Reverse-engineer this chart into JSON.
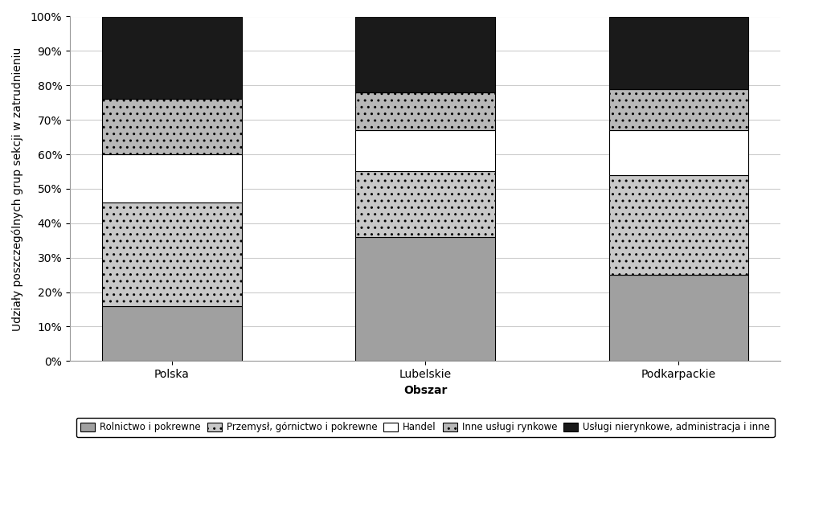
{
  "categories": [
    "Polska",
    "Lubelskie",
    "Podkarpackie"
  ],
  "series": [
    {
      "name": "Rolnictwo i pokrewne",
      "values": [
        16,
        36,
        25
      ],
      "color": "#a0a0a0",
      "hatch": ""
    },
    {
      "name": "Przemysł, górnictwo i pokrewne",
      "values": [
        30,
        19,
        29
      ],
      "color": "#c8c8c8",
      "hatch": ".."
    },
    {
      "name": "Handel",
      "values": [
        14,
        12,
        13
      ],
      "color": "#ffffff",
      "hatch": ""
    },
    {
      "name": "Inne usługi rynkowe",
      "values": [
        16,
        11,
        12
      ],
      "color": "#c8c8c8",
      "hatch": ".."
    },
    {
      "name": "Usługi nierynkowe, administracja i inne",
      "values": [
        24,
        22,
        21
      ],
      "color": "#1a1a1a",
      "hatch": ""
    }
  ],
  "xlabel": "Obszar",
  "ylabel": "Udziały poszczególnych grup sekcji w zatrudnieniu",
  "ylim": [
    0,
    100
  ],
  "yticks": [
    0,
    10,
    20,
    30,
    40,
    50,
    60,
    70,
    80,
    90,
    100
  ],
  "ytick_labels": [
    "0%",
    "10%",
    "20%",
    "30%",
    "40%",
    "50%",
    "60%",
    "70%",
    "80%",
    "90%",
    "100%"
  ],
  "bar_width": 0.55,
  "background_color": "#ffffff",
  "grid_color": "#cccccc",
  "edge_color": "#000000",
  "legend_border_color": "#000000",
  "title_fontsize": 10,
  "axis_fontsize": 10,
  "tick_fontsize": 10
}
